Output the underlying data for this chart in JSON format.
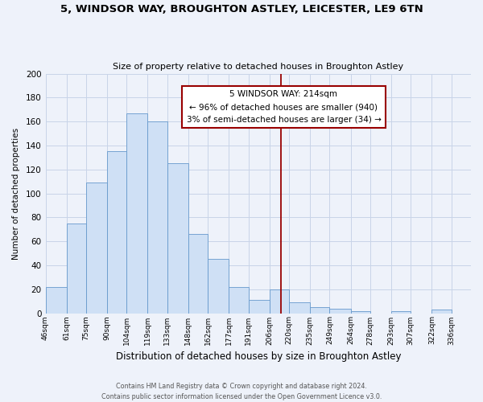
{
  "title": "5, WINDSOR WAY, BROUGHTON ASTLEY, LEICESTER, LE9 6TN",
  "subtitle": "Size of property relative to detached houses in Broughton Astley",
  "xlabel": "Distribution of detached houses by size in Broughton Astley",
  "ylabel": "Number of detached properties",
  "bin_labels": [
    "46sqm",
    "61sqm",
    "75sqm",
    "90sqm",
    "104sqm",
    "119sqm",
    "133sqm",
    "148sqm",
    "162sqm",
    "177sqm",
    "191sqm",
    "206sqm",
    "220sqm",
    "235sqm",
    "249sqm",
    "264sqm",
    "278sqm",
    "293sqm",
    "307sqm",
    "322sqm",
    "336sqm"
  ],
  "bin_edges": [
    46,
    61,
    75,
    90,
    104,
    119,
    133,
    148,
    162,
    177,
    191,
    206,
    220,
    235,
    249,
    264,
    278,
    293,
    307,
    322,
    336
  ],
  "bar_heights": [
    22,
    75,
    109,
    135,
    167,
    160,
    125,
    66,
    45,
    22,
    11,
    20,
    9,
    5,
    4,
    2,
    0,
    2,
    0,
    3,
    0
  ],
  "bar_color": "#cfe0f5",
  "bar_edge_color": "#6699cc",
  "grid_color": "#c8d4e8",
  "vline_x": 214,
  "vline_color": "#990000",
  "annotation_title": "5 WINDSOR WAY: 214sqm",
  "annotation_line1": "← 96% of detached houses are smaller (940)",
  "annotation_line2": "3% of semi-detached houses are larger (34) →",
  "annotation_box_color": "#ffffff",
  "annotation_border_color": "#990000",
  "ylim": [
    0,
    200
  ],
  "yticks": [
    0,
    20,
    40,
    60,
    80,
    100,
    120,
    140,
    160,
    180,
    200
  ],
  "footer1": "Contains HM Land Registry data © Crown copyright and database right 2024.",
  "footer2": "Contains public sector information licensed under the Open Government Licence v3.0.",
  "bg_color": "#eef2fa"
}
